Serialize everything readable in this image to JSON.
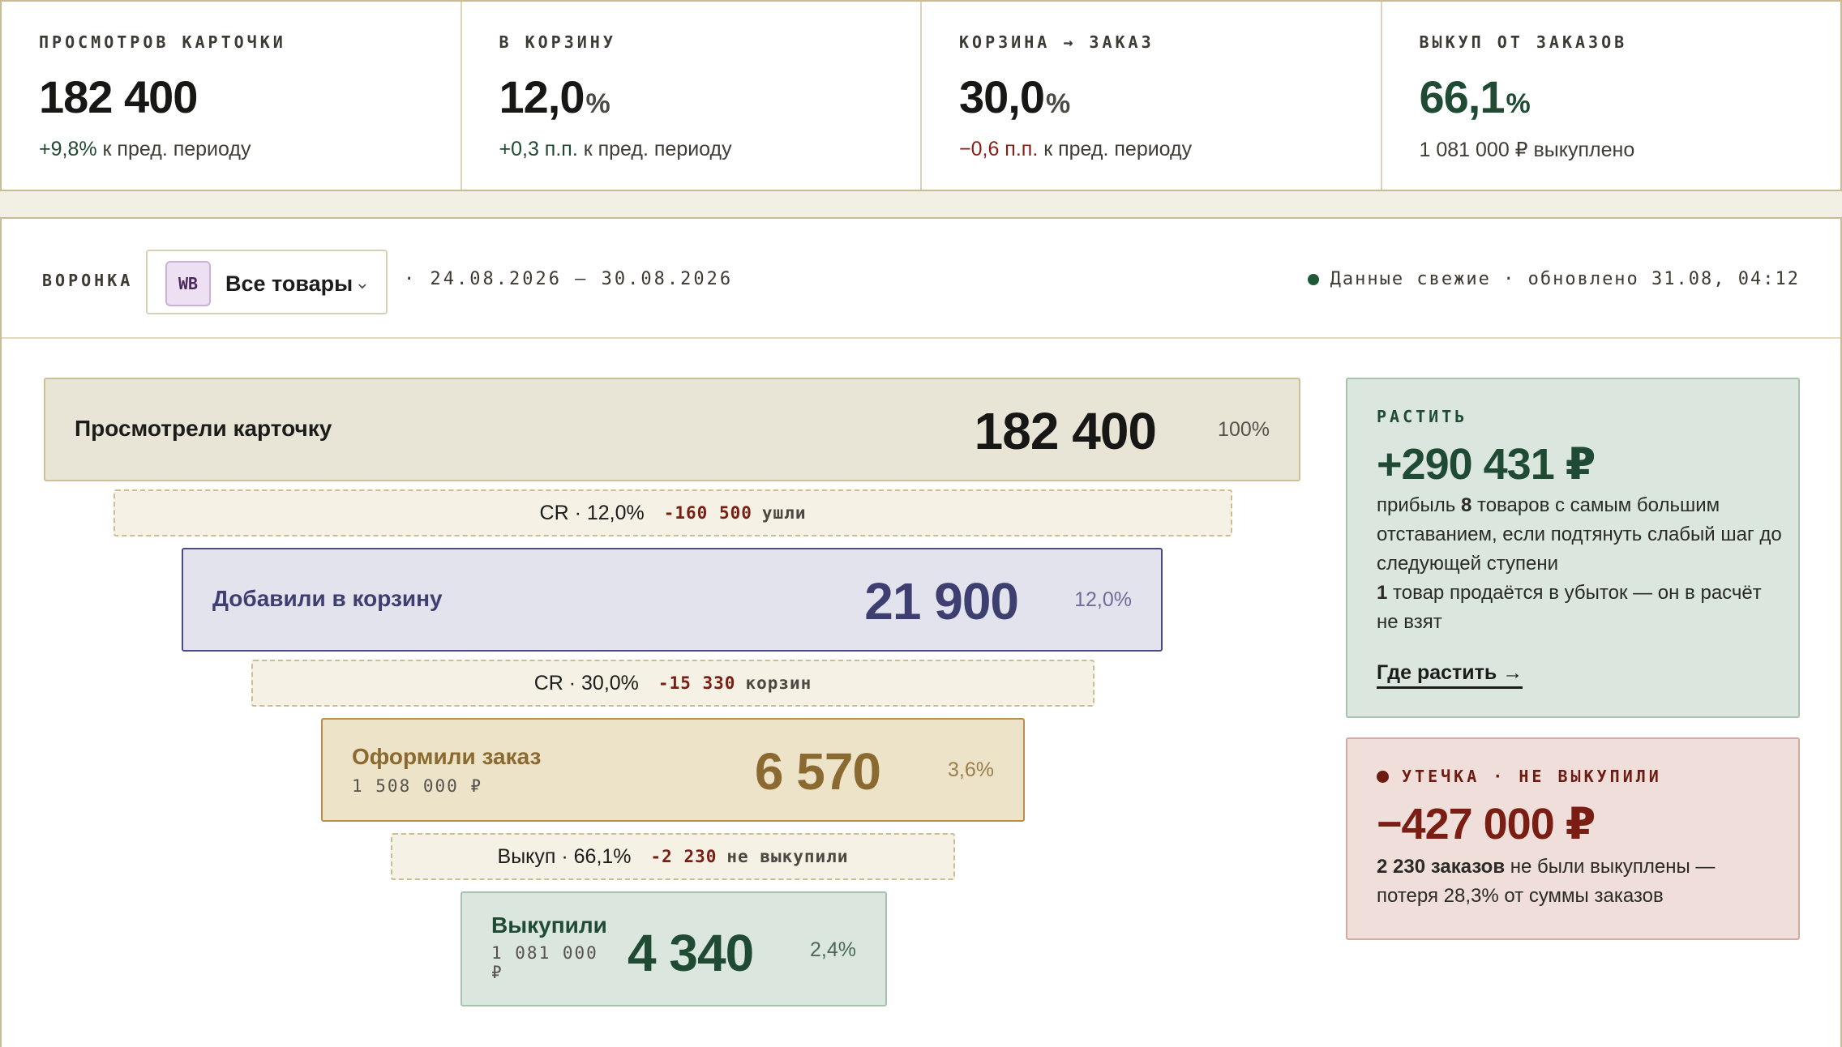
{
  "kpis": [
    {
      "label": "ПРОСМОТРОВ КАРТОЧКИ",
      "value": "182 400",
      "unit": "",
      "delta": "+9,8%",
      "delta_tail": "к пред. периоду"
    },
    {
      "label": "В КОРЗИНУ",
      "value": "12,0",
      "unit": "%",
      "delta": "+0,3 п.п.",
      "delta_tail": "к пред. периоду"
    },
    {
      "label": "КОРЗИНА → ЗАКАЗ",
      "value": "30,0",
      "unit": "%",
      "delta": "−0,6 п.п.",
      "delta_tail": "к пред. периоду"
    },
    {
      "label": "ВЫКУП ОТ ЗАКАЗОВ",
      "value": "66,1",
      "unit": "%",
      "delta": "",
      "delta_tail": "1 081 000 ₽ выкуплено"
    }
  ],
  "funnel_header": {
    "label": "ВОРОНКА",
    "marketplace_badge": "WB",
    "product_select": "Все товары",
    "period": "· 24.08.2026 — 30.08.2026",
    "status": "Данные свежие · обновлено 31.08, 04:12"
  },
  "stages": [
    {
      "name": "Просмотрели карточку",
      "sub": "",
      "value": "182 400",
      "pct": "100%"
    },
    {
      "name": "Добавили в корзину",
      "sub": "",
      "value": "21 900",
      "pct": "12,0%"
    },
    {
      "name": "Оформили заказ",
      "sub": "1 508 000 ₽",
      "value": "6 570",
      "pct": "3,6%"
    },
    {
      "name": "Выкупили",
      "sub": "1 081 000 ₽",
      "value": "4 340",
      "pct": "2,4%"
    }
  ],
  "gaps": [
    {
      "rate": "CR · 12,0%",
      "loss": "-160 500",
      "loss_label": "ушли"
    },
    {
      "rate": "CR · 30,0%",
      "loss": "-15 330",
      "loss_label": "корзин"
    },
    {
      "rate": "Выкуп · 66,1%",
      "loss": "-2 230",
      "loss_label": "не выкупили"
    }
  ],
  "grow_card": {
    "label": "РАСТИТЬ",
    "amount": "+290 431 ₽",
    "text_1": "прибыль",
    "text_bold": "8",
    "text_2": "товаров с самым большим отставанием, если подтянуть слабый шаг до следующей ступени",
    "note_bold": "1",
    "note_text": "товар продаётся в убыток — он в расчёт не взят",
    "link": "Где растить →"
  },
  "leak_card": {
    "label": "УТЕЧКА · НЕ ВЫКУПИЛИ",
    "amount": "−427 000 ₽",
    "text_bold": "2 230 заказов",
    "text": "не были выкуплены — потеря 28,3% от суммы заказов"
  },
  "colors": {
    "green": "#1f4a33",
    "red": "#8a1f13",
    "stage_view_bg": "#e8e4d6",
    "stage_cart_bg": "#e3e3ee",
    "stage_order_bg": "#ede3c8",
    "stage_buy_bg": "#dbe6de"
  }
}
